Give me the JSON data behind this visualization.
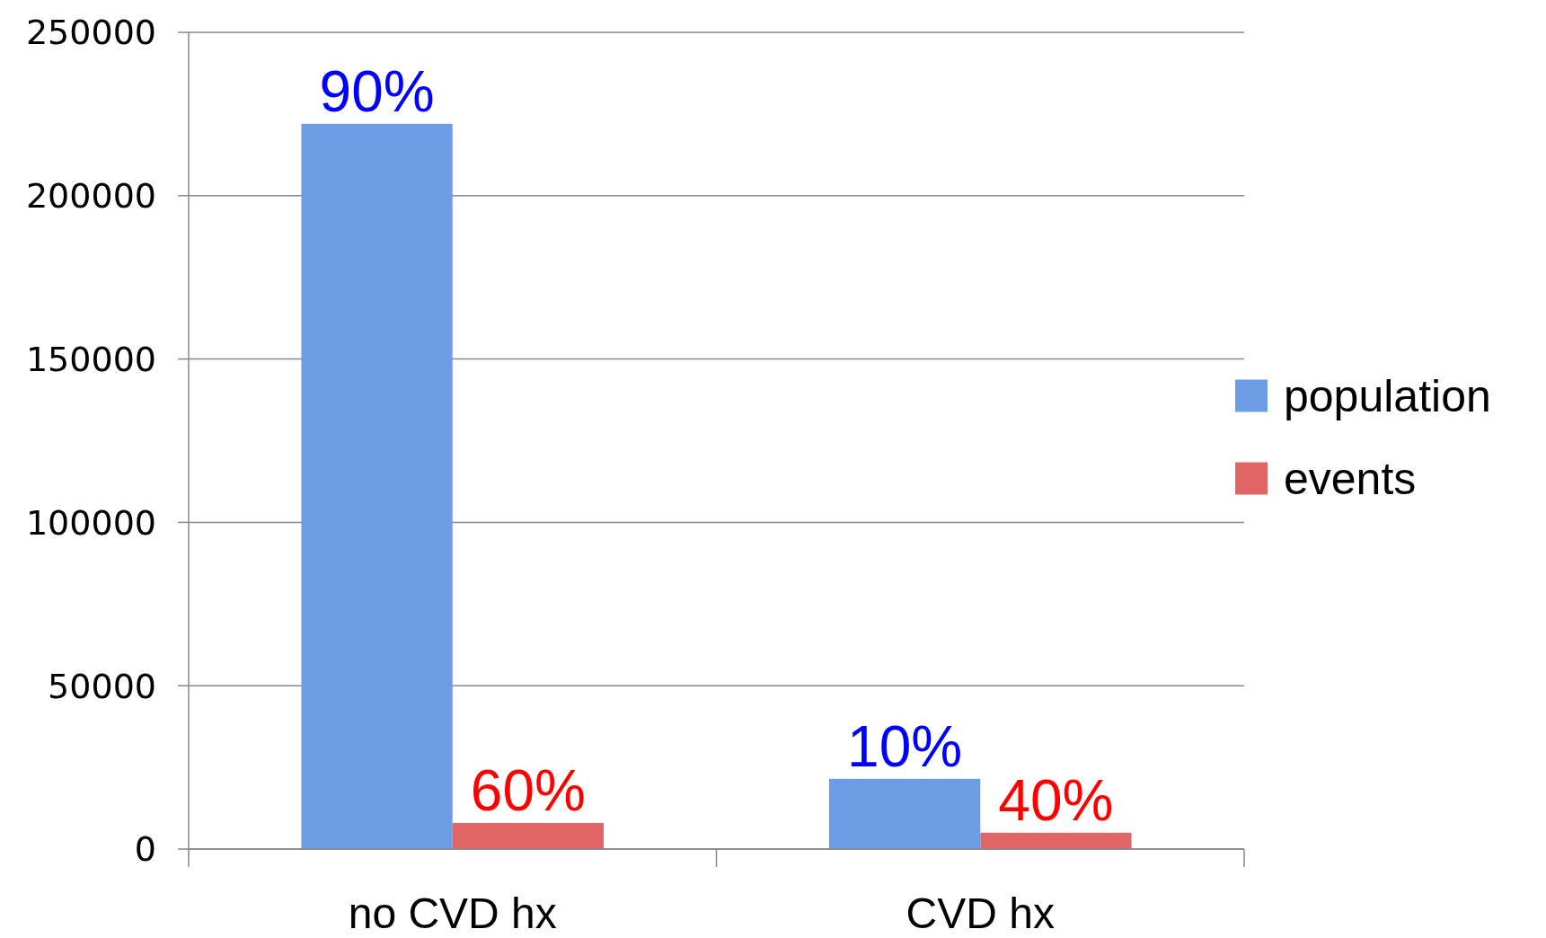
{
  "chart_data": {
    "type": "bar",
    "categories": [
      "no CVD hx",
      "CVD hx"
    ],
    "series": [
      {
        "name": "population",
        "color": "#6d9de5",
        "values": [
          222000,
          21500
        ]
      },
      {
        "name": "events",
        "color": "#e06666",
        "values": [
          8000,
          5000
        ]
      }
    ],
    "annotations": [
      {
        "text": "90%",
        "x": "no CVD hx",
        "y": 222000
      },
      {
        "text": "60%",
        "x": "no CVD hx",
        "y": 8000
      },
      {
        "text": "10%",
        "x": "CVD hx",
        "y": 21500
      },
      {
        "text": "40%",
        "x": "CVD hx",
        "y": 5000
      }
    ],
    "ylim": [
      0,
      250000
    ],
    "yticks": [
      0,
      50000,
      100000,
      150000,
      200000,
      250000
    ],
    "grid": "y",
    "legend": "right"
  }
}
